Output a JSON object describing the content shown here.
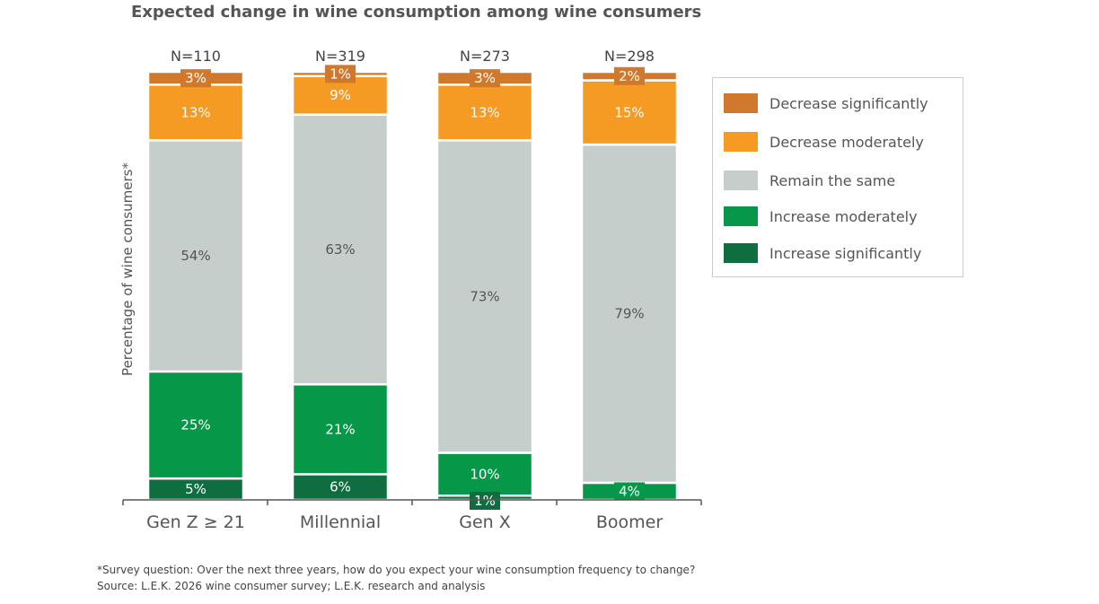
{
  "chart_data": {
    "type": "bar",
    "stacked": true,
    "title": "Expected change in wine consumption among wine consumers",
    "ylabel": "Percentage of wine consumers*",
    "categories": [
      "Gen Z ≥ 21",
      "Millennial",
      "Gen X",
      "Boomer"
    ],
    "n_labels": [
      "N=110",
      "N=319",
      "N=273",
      "N=298"
    ],
    "series": [
      {
        "name": "Increase significantly",
        "color": "#0f6e40",
        "values": [
          5,
          6,
          1,
          0
        ]
      },
      {
        "name": "Increase moderately",
        "color": "#069848",
        "values": [
          25,
          21,
          10,
          4
        ]
      },
      {
        "name": "Remain the same",
        "color": "#c5ceca",
        "values": [
          54,
          63,
          73,
          79
        ]
      },
      {
        "name": "Decrease moderately",
        "color": "#f59a23",
        "values": [
          13,
          9,
          13,
          15
        ]
      },
      {
        "name": "Decrease significantly",
        "color": "#d0782b",
        "values": [
          3,
          1,
          3,
          2
        ]
      }
    ],
    "legend_position": "right"
  },
  "footnotes": [
    "*Survey question: Over the next three years, how do you expect your wine consumption frequency to change?",
    "Source: L.E.K. 2026 wine consumer survey; L.E.K. research and analysis"
  ]
}
